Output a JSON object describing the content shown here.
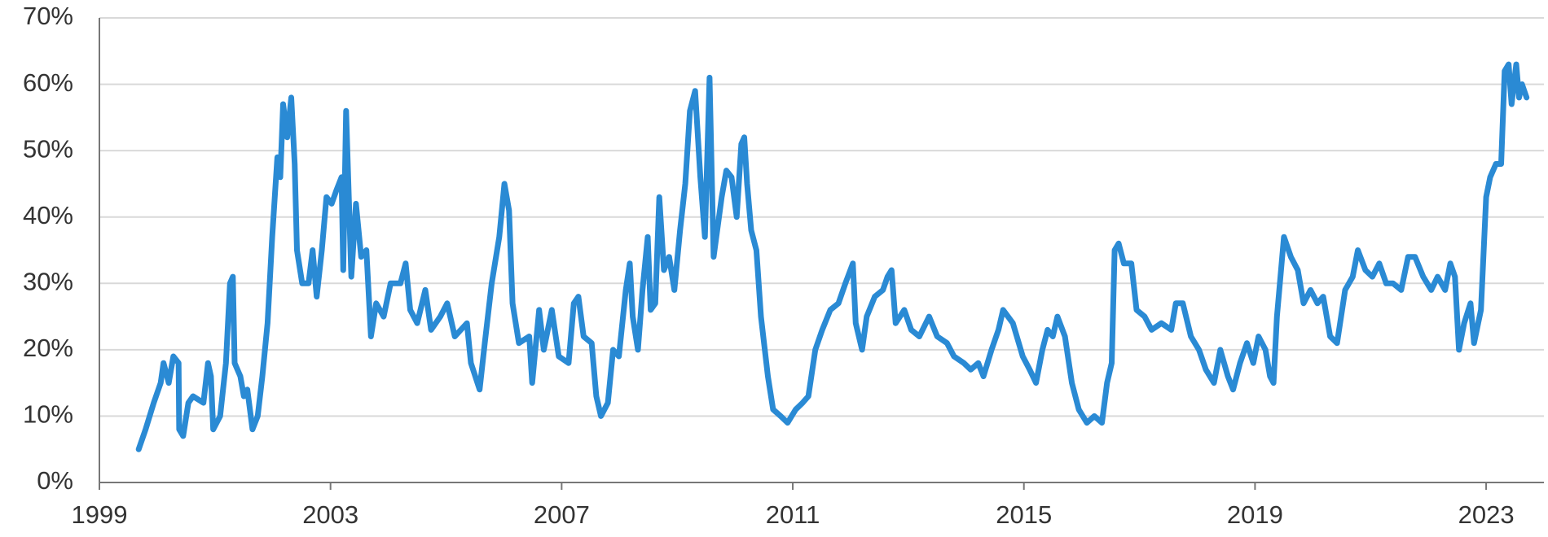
{
  "chart_data": {
    "type": "line",
    "color": "#2a8ad4",
    "grid": true,
    "xlim": [
      1999,
      2024
    ],
    "xticks": [
      1999,
      2003,
      2007,
      2011,
      2015,
      2019,
      2023
    ],
    "ylim": [
      0,
      70
    ],
    "yticks": [
      {
        "value": 0,
        "label": "0%"
      },
      {
        "value": 10,
        "label": "10%"
      },
      {
        "value": 20,
        "label": "20%"
      },
      {
        "value": 30,
        "label": "30%"
      },
      {
        "value": 40,
        "label": "40%"
      },
      {
        "value": 50,
        "label": "50%"
      },
      {
        "value": 60,
        "label": "60%"
      },
      {
        "value": 70,
        "label": "70%"
      }
    ],
    "x": [
      1999.68,
      1999.8,
      1999.94,
      2000.06,
      2000.11,
      2000.2,
      2000.28,
      2000.37,
      2000.38,
      2000.45,
      2000.54,
      2000.62,
      2000.8,
      2000.88,
      2000.93,
      2000.97,
      2001.09,
      2001.19,
      2001.26,
      2001.31,
      2001.34,
      2001.44,
      2001.5,
      2001.56,
      2001.65,
      2001.74,
      2001.82,
      2001.91,
      2001.99,
      2002.08,
      2002.13,
      2002.18,
      2002.25,
      2002.32,
      2002.38,
      2002.42,
      2002.51,
      2002.62,
      2002.69,
      2002.76,
      2002.85,
      2002.93,
      2003.02,
      2003.1,
      2003.19,
      2003.22,
      2003.27,
      2003.36,
      2003.44,
      2003.53,
      2003.62,
      2003.7,
      2003.79,
      2003.92,
      2004.04,
      2004.21,
      2004.3,
      2004.38,
      2004.5,
      2004.64,
      2004.74,
      2004.9,
      2005.02,
      2005.15,
      2005.36,
      2005.43,
      2005.58,
      2005.67,
      2005.79,
      2005.92,
      2006.01,
      2006.09,
      2006.15,
      2006.26,
      2006.44,
      2006.49,
      2006.61,
      2006.69,
      2006.83,
      2006.95,
      2007.12,
      2007.21,
      2007.29,
      2007.38,
      2007.52,
      2007.6,
      2007.68,
      2007.8,
      2007.89,
      2007.99,
      2008.11,
      2008.18,
      2008.23,
      2008.32,
      2008.4,
      2008.49,
      2008.54,
      2008.62,
      2008.69,
      2008.77,
      2008.86,
      2008.95,
      2009.05,
      2009.14,
      2009.22,
      2009.31,
      2009.4,
      2009.48,
      2009.56,
      2009.63,
      2009.77,
      2009.85,
      2009.94,
      2010.03,
      2010.11,
      2010.16,
      2010.21,
      2010.28,
      2010.37,
      2010.45,
      2010.57,
      2010.66,
      2010.79,
      2010.91,
      2011.05,
      2011.17,
      2011.27,
      2011.39,
      2011.51,
      2011.65,
      2011.79,
      2011.91,
      2012.04,
      2012.09,
      2012.2,
      2012.28,
      2012.42,
      2012.56,
      2012.64,
      2012.71,
      2012.78,
      2012.93,
      2013.05,
      2013.19,
      2013.36,
      2013.5,
      2013.67,
      2013.79,
      2013.96,
      2014.08,
      2014.21,
      2014.3,
      2014.44,
      2014.56,
      2014.64,
      2014.81,
      2014.98,
      2015.1,
      2015.21,
      2015.32,
      2015.41,
      2015.5,
      2015.58,
      2015.71,
      2015.83,
      2015.95,
      2016.09,
      2016.22,
      2016.35,
      2016.44,
      2016.52,
      2016.57,
      2016.64,
      2016.73,
      2016.86,
      2016.95,
      2017.09,
      2017.21,
      2017.38,
      2017.55,
      2017.63,
      2017.75,
      2017.89,
      2018.03,
      2018.15,
      2018.29,
      2018.4,
      2018.53,
      2018.62,
      2018.74,
      2018.86,
      2018.97,
      2019.06,
      2019.18,
      2019.26,
      2019.32,
      2019.38,
      2019.43,
      2019.5,
      2019.62,
      2019.74,
      2019.84,
      2019.96,
      2020.08,
      2020.18,
      2020.3,
      2020.42,
      2020.56,
      2020.69,
      2020.78,
      2020.91,
      2021.03,
      2021.15,
      2021.27,
      2021.39,
      2021.53,
      2021.65,
      2021.77,
      2021.91,
      2022.05,
      2022.16,
      2022.29,
      2022.38,
      2022.46,
      2022.53,
      2022.62,
      2022.73,
      2022.79,
      2022.91,
      2023.0,
      2023.07,
      2023.17,
      2023.26,
      2023.32,
      2023.39,
      2023.44,
      2023.52,
      2023.57,
      2023.62,
      2023.7
    ],
    "values": [
      5,
      8,
      12,
      15,
      18,
      15,
      19,
      18,
      8,
      7,
      12,
      13,
      12,
      18,
      16,
      8,
      10,
      18,
      30,
      31,
      18,
      16,
      13,
      14,
      8,
      10,
      16,
      24,
      37,
      49,
      46,
      57,
      52,
      58,
      48,
      35,
      30,
      30,
      35,
      28,
      35,
      43,
      42,
      44,
      46,
      32,
      56,
      31,
      42,
      34,
      35,
      22,
      27,
      25,
      30,
      30,
      33,
      26,
      24,
      29,
      23,
      25,
      27,
      22,
      24,
      18,
      14,
      21,
      30,
      37,
      45,
      41,
      27,
      21,
      22,
      15,
      26,
      20,
      26,
      19,
      18,
      27,
      28,
      22,
      21,
      13,
      10,
      12,
      20,
      19,
      29,
      33,
      25,
      20,
      29,
      37,
      26,
      27,
      43,
      32,
      34,
      29,
      38,
      45,
      56,
      59,
      46,
      37,
      61,
      34,
      43,
      47,
      46,
      40,
      51,
      52,
      45,
      38,
      35,
      25,
      16,
      11,
      10,
      9,
      11,
      12,
      13,
      20,
      23,
      26,
      27,
      30,
      33,
      24,
      20,
      25,
      28,
      29,
      31,
      32,
      24,
      26,
      23,
      22,
      25,
      22,
      21,
      19,
      18,
      17,
      18,
      16,
      20,
      23,
      26,
      24,
      19,
      17,
      15,
      20,
      23,
      22,
      25,
      22,
      15,
      11,
      9,
      10,
      9,
      15,
      18,
      35,
      36,
      33,
      33,
      26,
      25,
      23,
      24,
      23,
      27,
      27,
      22,
      20,
      17,
      15,
      20,
      16,
      14,
      18,
      21,
      18,
      22,
      20,
      16,
      15,
      25,
      30,
      37,
      34,
      32,
      27,
      29,
      27,
      28,
      22,
      21,
      29,
      31,
      35,
      32,
      31,
      33,
      30,
      30,
      29,
      34,
      34,
      31,
      29,
      31,
      29,
      33,
      31,
      20,
      24,
      27,
      21,
      26,
      43,
      46,
      48,
      48,
      62,
      63,
      57,
      63,
      58,
      60,
      58
    ]
  }
}
